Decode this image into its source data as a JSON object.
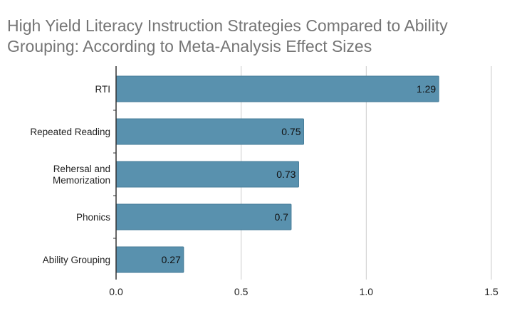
{
  "chart_data": {
    "type": "bar",
    "orientation": "horizontal",
    "title_lines": [
      "High Yield Literacy Instruction Strategies Compared to Ability",
      "Grouping: According to Meta-Analysis Effect Sizes"
    ],
    "categories": [
      [
        "RTI"
      ],
      [
        "Repeated Reading"
      ],
      [
        "Rehersal and",
        "Memorization"
      ],
      [
        "Phonics"
      ],
      [
        "Ability Grouping"
      ]
    ],
    "values": [
      1.29,
      0.75,
      0.73,
      0.7,
      0.27
    ],
    "data_labels": [
      "1.29",
      "0.75",
      "0.73",
      "0.7",
      "0.27"
    ],
    "xlim": [
      0,
      1.5
    ],
    "xticks": [
      0,
      0.5,
      1.0,
      1.5
    ],
    "xtick_labels": [
      "0.0",
      "0.5",
      "1.0",
      "1.5"
    ],
    "xlabel": "",
    "ylabel": "",
    "grid": "vertical",
    "bar_color": "#5991ae",
    "bar_edge_color": "#477d99",
    "grid_color": "#cccccc",
    "axis_color": "#333333"
  }
}
